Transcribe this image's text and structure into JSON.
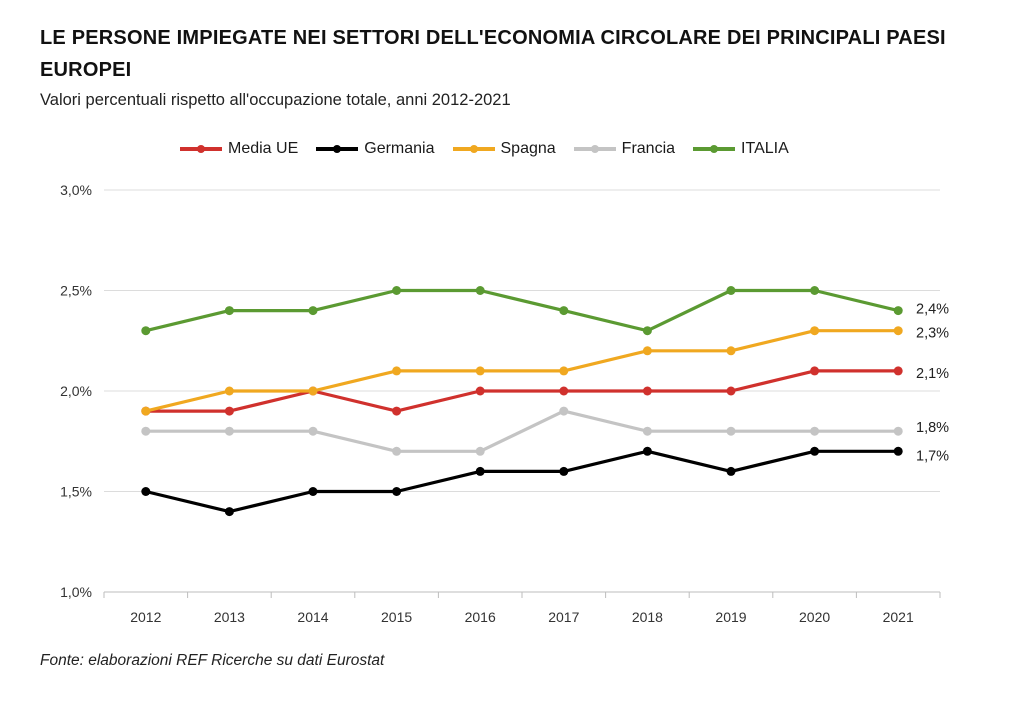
{
  "title": "LE PERSONE IMPIEGATE NEI SETTORI DELL'ECONOMIA CIRCOLARE DEI PRINCIPALI PAESI EUROPEI",
  "subtitle": "Valori percentuali rispetto all'occupazione totale, anni 2012-2021",
  "source": "Fonte: elaborazioni REF Ricerche su dati Eurostat",
  "chart_data": {
    "type": "line",
    "title": "LE PERSONE IMPIEGATE NEI SETTORI DELL'ECONOMIA CIRCOLARE DEI PRINCIPALI PAESI EUROPEI",
    "subtitle": "Valori percentuali rispetto all'occupazione totale, anni 2012-2021",
    "categories": [
      "2012",
      "2013",
      "2014",
      "2015",
      "2016",
      "2017",
      "2018",
      "2019",
      "2020",
      "2021"
    ],
    "y_ticks": [
      "1,0%",
      "1,5%",
      "2,0%",
      "2,5%",
      "3,0%"
    ],
    "y_tick_values": [
      1.0,
      1.5,
      2.0,
      2.5,
      3.0
    ],
    "ylim": [
      1.0,
      3.0
    ],
    "grid": "horizontal",
    "legend_position": "top",
    "series": [
      {
        "name": "Media UE",
        "color": "#d0312d",
        "values": [
          1.9,
          1.9,
          2.0,
          1.9,
          2.0,
          2.0,
          2.0,
          2.0,
          2.1,
          2.1
        ],
        "end_label": "2,1%"
      },
      {
        "name": "Germania",
        "color": "#000000",
        "values": [
          1.5,
          1.4,
          1.5,
          1.5,
          1.6,
          1.6,
          1.7,
          1.6,
          1.7,
          1.7
        ],
        "end_label": "1,7%"
      },
      {
        "name": "Spagna",
        "color": "#f0a820",
        "values": [
          1.9,
          2.0,
          2.0,
          2.1,
          2.1,
          2.1,
          2.2,
          2.2,
          2.3,
          2.3
        ],
        "end_label": "2,3%"
      },
      {
        "name": "Francia",
        "color": "#c4c4c4",
        "values": [
          1.8,
          1.8,
          1.8,
          1.7,
          1.7,
          1.9,
          1.8,
          1.8,
          1.8,
          1.8
        ],
        "end_label": "1,8%"
      },
      {
        "name": "ITALIA",
        "color": "#5b9a32",
        "values": [
          2.3,
          2.4,
          2.4,
          2.5,
          2.5,
          2.4,
          2.3,
          2.5,
          2.5,
          2.4
        ],
        "end_label": "2,4%"
      }
    ]
  }
}
